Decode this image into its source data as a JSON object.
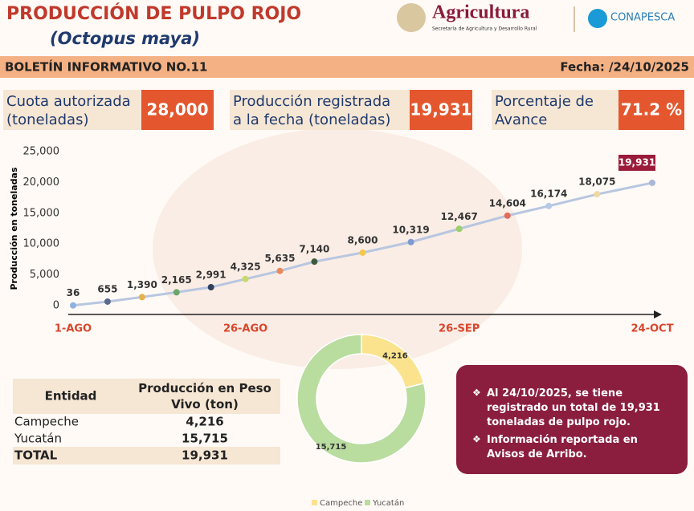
{
  "header": {
    "title": "PRODUCCIÓN DE PULPO ROJO",
    "subtitle": "(Octopus maya)",
    "brand": "Agricultura",
    "brand_subtitle": "Secretaría de Agricultura y Desarrollo Rural",
    "agency": "CONAPESCA"
  },
  "banner": {
    "left": "BOLETÍN INFORMATIVO NO.11",
    "right": "Fecha: /24/10/2025"
  },
  "kpis": [
    {
      "label": [
        "Cuota autorizada",
        "(toneladas)"
      ],
      "value": "28,000"
    },
    {
      "label": [
        "Producción registrada",
        "a la fecha (toneladas)"
      ],
      "value": "19,931"
    },
    {
      "label": [
        "Porcentaje de",
        "Avance"
      ],
      "value": "71.2 %"
    }
  ],
  "chart_data": [
    {
      "type": "line",
      "y_label": "Producción en toneladas",
      "x": [
        0,
        5,
        10,
        15,
        20,
        25,
        30,
        35,
        42,
        49,
        56,
        63,
        69,
        76,
        84
      ],
      "values": [
        36,
        655,
        1390,
        2165,
        2991,
        4325,
        5635,
        7140,
        8600,
        10319,
        12467,
        14604,
        16174,
        18075,
        19931
      ],
      "value_labels": [
        "36",
        "655",
        "1,390",
        "2,165",
        "2,991",
        "4,325",
        "5,635",
        "7,140",
        "8,600",
        "10,319",
        "12,467",
        "14,604",
        "16,174",
        "18,075",
        "19,931"
      ],
      "colors": [
        "#8fb3de",
        "#5b6b8c",
        "#e8b04a",
        "#6aa66a",
        "#2f3f5f",
        "#c7d96a",
        "#e8895a",
        "#3d5a3d",
        "#f2c94c",
        "#7e9bd1",
        "#9ccf6b",
        "#e36b5b",
        "#b6c9e8",
        "#f0d9a0",
        "#a8b8d8"
      ],
      "line_color": "#b8c6e0",
      "xlim": [
        0,
        84
      ],
      "xticks": [
        {
          "value": 0,
          "label": "1-AGO"
        },
        {
          "value": 25,
          "label": "26-AGO"
        },
        {
          "value": 56,
          "label": "26-SEP"
        },
        {
          "value": 84,
          "label": "24-OCT"
        }
      ],
      "ylim": [
        0,
        25000
      ],
      "yticks": [
        0,
        {
          "value": 5000,
          "label": "5,000"
        },
        {
          "value": 10000,
          "label": "10,000"
        },
        {
          "value": 15000,
          "label": "15,000"
        },
        {
          "value": 20000,
          "label": "20,000"
        },
        {
          "value": 25000,
          "label": "25,000"
        }
      ]
    },
    {
      "type": "pie",
      "categories": [
        "Campeche",
        "Yucatán"
      ],
      "values": [
        4216,
        15715
      ],
      "value_labels": [
        "4,216",
        "15,715"
      ],
      "colors": [
        "#fbe38e",
        "#b9dc9f"
      ],
      "legend": "bottom"
    }
  ],
  "table": {
    "header": [
      "Entidad",
      "Producción en Peso Vivo (ton)"
    ],
    "rows": [
      [
        "Campeche",
        "4,216"
      ],
      [
        "Yucatán",
        "15,715"
      ],
      [
        "TOTAL",
        "19,931"
      ]
    ]
  },
  "notes": [
    "Al 24/10/2025, se tiene registrado un total de 19,931 toneladas de pulpo rojo.",
    "Información reportada en Avisos de Arribo."
  ]
}
